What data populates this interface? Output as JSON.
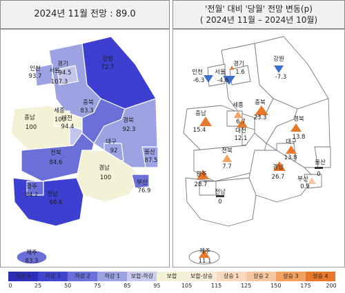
{
  "left_title": "2024년 11월 전망 : 89.0",
  "right_title_line1": "'전월' 대비 '당월' 전망 변동(p)",
  "right_title_line2": "( 2024년 11월 – 2024년 10월)",
  "colors": {
    "dark_blue": "#3c3fcf",
    "mid_blue": "#6b70d8",
    "light_blue": "#9da2e2",
    "lighter_blue": "#c2c5ec",
    "cream": "#f3f2d6",
    "orange_light": "#f8c7a0",
    "orange_mid": "#f2a160",
    "orange_dark": "#e8782c",
    "white": "#ffffff"
  },
  "left_regions": {
    "incheon": {
      "name": "인천",
      "value": "93.7"
    },
    "seoul": {
      "name": "서울",
      "value": "107.3"
    },
    "gyeonggi": {
      "name": "경기",
      "value": "94.5"
    },
    "gangwon": {
      "name": "강원",
      "value": "72.7"
    },
    "chungbuk": {
      "name": "충북",
      "value": "83.3"
    },
    "sejong": {
      "name": "세종",
      "value": "100"
    },
    "chungnam": {
      "name": "충남",
      "value": "100"
    },
    "daejeon": {
      "name": "대전",
      "value": "94.4"
    },
    "gyeongbuk": {
      "name": "경북",
      "value": "92.3"
    },
    "daegu": {
      "name": "대구",
      "value": "92"
    },
    "ulsan": {
      "name": "울산",
      "value": "87.5"
    },
    "jeonbuk": {
      "name": "전북",
      "value": "84.6"
    },
    "gyeongnam": {
      "name": "경남",
      "value": "100"
    },
    "busan": {
      "name": "부산",
      "value": "76.9"
    },
    "gwangju": {
      "name": "광주",
      "value": "84.2"
    },
    "jeonnam": {
      "name": "전남",
      "value": "66.6"
    },
    "jeju": {
      "name": "제주",
      "value": "83.3"
    }
  },
  "right_regions": {
    "incheon": {
      "name": "인천",
      "value": "-6.3"
    },
    "seoul": {
      "name": "서울",
      "value": "-4.6"
    },
    "gyeonggi": {
      "name": "경기",
      "value": "1.6"
    },
    "gangwon": {
      "name": "강원",
      "value": "-7.3"
    },
    "chungbuk": {
      "name": "충북",
      "value": "23.3"
    },
    "sejong": {
      "name": "세종",
      "value": "6.7"
    },
    "chungnam": {
      "name": "충남",
      "value": "15.4"
    },
    "daejeon": {
      "name": "대전",
      "value": "12.1"
    },
    "gyeongbuk": {
      "name": "경북",
      "value": "13.8"
    },
    "daegu": {
      "name": "대구",
      "value": "13.8"
    },
    "ulsan": {
      "name": "울산",
      "value": "0"
    },
    "jeonbuk": {
      "name": "전북",
      "value": "7.7"
    },
    "gyeongnam": {
      "name": "경남",
      "value": "26.7"
    },
    "busan": {
      "name": "부산",
      "value": "0.9"
    },
    "gwangju": {
      "name": "광주",
      "value": "28.7"
    },
    "jeonnam": {
      "name": "전남",
      "value": "0"
    },
    "jeju": {
      "name": "제주",
      "value": "11.1"
    }
  },
  "legend": [
    {
      "label": "하강 4",
      "color": "#2e2fb8"
    },
    {
      "label": "하강 3",
      "color": "#4144cf"
    },
    {
      "label": "하강 2",
      "color": "#6b70d8"
    },
    {
      "label": "하강 1",
      "color": "#9da2e2"
    },
    {
      "label": "보합-하강",
      "color": "#c9cbee"
    },
    {
      "label": "보합",
      "color": "#f3f2d6"
    },
    {
      "label": "보합-상승",
      "color": "#f7ecd9"
    },
    {
      "label": "상승 1",
      "color": "#fad9bc"
    },
    {
      "label": "상승 2",
      "color": "#f8c7a0"
    },
    {
      "label": "상승 3",
      "color": "#f2a160"
    },
    {
      "label": "상승 4",
      "color": "#e8782c"
    }
  ],
  "ticks": [
    "0",
    "25",
    "50",
    "75",
    "85",
    "95",
    "105",
    "115",
    "125",
    "150",
    "175",
    "200"
  ]
}
